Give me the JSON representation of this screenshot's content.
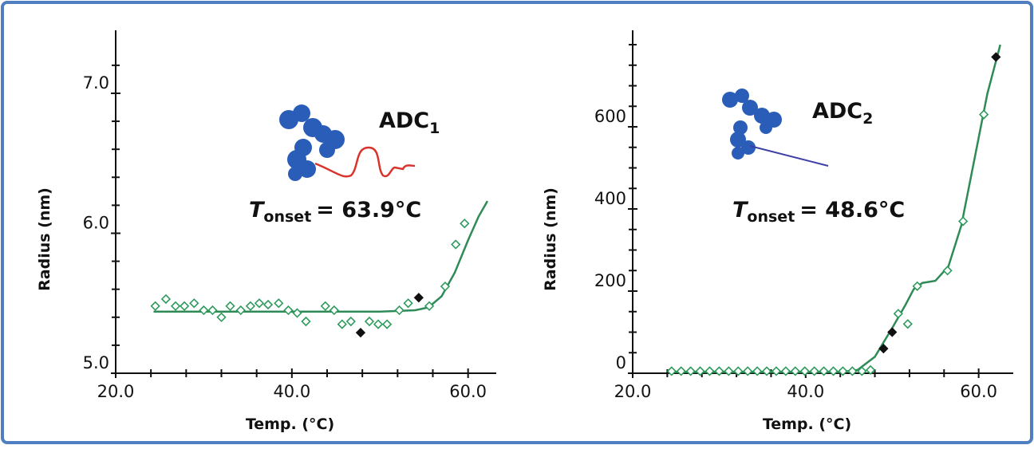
{
  "chart_data": [
    {
      "type": "scatter",
      "x_label": "Temp. (°C)",
      "y_label": "Radius (nm)",
      "annotation": {
        "name": "ADC",
        "sub": "1",
        "symbol": "T",
        "symbol_sub": "onset",
        "text": "= 63.9°C"
      },
      "xlim": [
        20,
        63.2
      ],
      "ylim": [
        5,
        7.45
      ],
      "xticks": [
        {
          "value": 20,
          "label": "20.0"
        },
        {
          "value": 40,
          "label": "40.0"
        },
        {
          "value": 60,
          "label": "60.0"
        }
      ],
      "xminor": [
        24,
        28,
        32,
        36,
        44,
        48,
        52,
        56
      ],
      "yticks": [
        {
          "value": 5,
          "label": "5.0"
        },
        {
          "value": 6,
          "label": "6.0"
        },
        {
          "value": 7,
          "label": "7.0"
        }
      ],
      "yminor": [
        5.2,
        5.4,
        5.6,
        5.8,
        6.2,
        6.4,
        6.6,
        6.8,
        7.2
      ],
      "series": [
        {
          "kind": "line",
          "color": "#2e8b57",
          "x": [
            24.3,
            50,
            54,
            55.5,
            57,
            58.5,
            60,
            61.2,
            62.2
          ],
          "values": [
            5.44,
            5.44,
            5.45,
            5.47,
            5.55,
            5.72,
            5.95,
            6.12,
            6.23
          ]
        },
        {
          "kind": "open-diamond",
          "color": "#2e9a5c",
          "x": [
            24.5,
            25.7,
            26.8,
            27.8,
            28.9,
            30.0,
            31.0,
            32.0,
            33.0,
            34.2,
            35.3,
            36.3,
            37.3,
            38.5,
            39.6,
            40.6,
            41.6,
            43.8,
            44.8,
            45.7,
            46.7,
            48.8,
            49.8,
            50.8,
            52.2,
            53.2,
            55.6,
            57.4,
            58.6,
            59.6
          ],
          "values": [
            5.48,
            5.53,
            5.48,
            5.48,
            5.5,
            5.45,
            5.45,
            5.4,
            5.48,
            5.45,
            5.48,
            5.5,
            5.49,
            5.5,
            5.45,
            5.43,
            5.37,
            5.48,
            5.45,
            5.35,
            5.37,
            5.37,
            5.35,
            5.35,
            5.45,
            5.5,
            5.48,
            5.62,
            5.92,
            6.07
          ]
        },
        {
          "kind": "solid-diamond",
          "color": "#111111",
          "x": [
            47.8,
            54.4
          ],
          "values": [
            5.29,
            5.54
          ]
        }
      ]
    },
    {
      "type": "scatter",
      "x_label": "Temp. (°C)",
      "y_label": "Radius (nm)",
      "annotation": {
        "name": "ADC",
        "sub": "2",
        "symbol": "T",
        "symbol_sub": "onset",
        "text": "= 48.6°C"
      },
      "xlim": [
        20,
        64
      ],
      "ylim": [
        0,
        835
      ],
      "xticks": [
        {
          "value": 20,
          "label": "20.0"
        },
        {
          "value": 40,
          "label": "40.0"
        },
        {
          "value": 60,
          "label": "60.0"
        }
      ],
      "xminor": [
        24,
        28,
        32,
        36,
        44,
        48,
        52,
        56
      ],
      "yticks": [
        0,
        200,
        400,
        600
      ],
      "yminor": [
        50,
        100,
        150,
        250,
        300,
        350,
        450,
        500,
        550,
        650,
        700,
        750,
        800
      ],
      "series": [
        {
          "kind": "line",
          "color": "#2e8b57",
          "x": [
            24.3,
            44,
            46,
            48,
            50,
            51.5,
            52.5,
            53.5,
            55,
            56.5,
            58,
            59.5,
            61,
            62.5
          ],
          "values": [
            3,
            3,
            8,
            40,
            110,
            165,
            205,
            220,
            225,
            260,
            360,
            520,
            680,
            800
          ]
        },
        {
          "kind": "open-diamond",
          "color": "#2e9a5c",
          "x": [
            24.5,
            25.6,
            26.7,
            27.8,
            28.9,
            30.0,
            31.1,
            32.2,
            33.3,
            34.4,
            35.5,
            36.6,
            37.7,
            38.8,
            39.9,
            41.0,
            42.1,
            43.2,
            44.3,
            45.4,
            46.5,
            47.5,
            50.7,
            51.8,
            52.9,
            56.4,
            58.2,
            60.6
          ],
          "values": [
            5,
            5,
            5,
            5,
            5,
            5,
            5,
            5,
            5,
            5,
            5,
            5,
            5,
            5,
            5,
            5,
            5,
            5,
            5,
            5,
            5,
            8,
            145,
            120,
            212,
            250,
            370,
            630
          ]
        },
        {
          "kind": "solid-diamond",
          "color": "#111111",
          "x": [
            49.0,
            50.0,
            62.0
          ],
          "values": [
            60,
            100,
            770
          ]
        }
      ]
    }
  ]
}
